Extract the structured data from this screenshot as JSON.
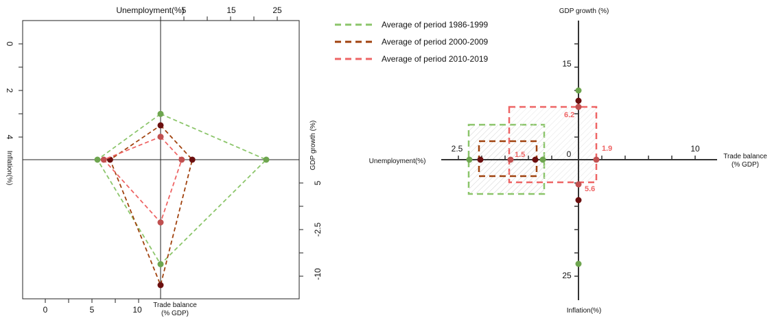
{
  "chart_data": [
    {
      "type": "radar",
      "axes": {
        "top": {
          "label": "Unemployment(%)",
          "ticks": [
            "5",
            "15",
            "25"
          ]
        },
        "left": {
          "label": "Inflation(%)",
          "ticks": [
            "0",
            "2",
            "4"
          ]
        },
        "right": {
          "label": "GDP growth (%)",
          "ticks": [
            "5",
            "-2.5",
            "-10"
          ]
        },
        "bottom": {
          "label": "Trade balance (% GDP)",
          "ticks": [
            "0",
            "5",
            "10"
          ]
        }
      },
      "series": [
        {
          "name": "Average of period 1986-1999",
          "color": "#8bc56a",
          "points": {
            "top": 4,
            "left": 10,
            "right": 20,
            "bottom": 2.5
          }
        },
        {
          "name": "Average of period 2000-2009",
          "color": "#a0420e",
          "points": {
            "top": 3,
            "left": 8,
            "right": 6,
            "bottom": 3
          }
        },
        {
          "name": "Average of period 2010-2019",
          "color": "#ee6464",
          "points": {
            "top": 2,
            "left": 9,
            "right": 4,
            "bottom": 1.5
          }
        }
      ]
    },
    {
      "type": "quadrant",
      "axes": {
        "top": {
          "label": "GDP growth (%)",
          "ticks": [
            "15"
          ]
        },
        "bottom": {
          "label": "Inflation(%)",
          "ticks": [
            "25"
          ]
        },
        "left": {
          "label": "Unemployment(%)",
          "ticks": [
            "2.5"
          ]
        },
        "right": {
          "label": "Trade balance",
          "label2": "(% GDP)",
          "ticks": [
            "10"
          ]
        },
        "origin": "0"
      },
      "annotations": [
        "6.2",
        "1.9",
        "1.5",
        "5.6"
      ],
      "legend": [
        {
          "name": "Average of period 1986-1999",
          "color": "#8bc56a"
        },
        {
          "name": "Average of period 2000-2009",
          "color": "#a0420e"
        },
        {
          "name": "Average of period 2010-2019",
          "color": "#ee6464"
        }
      ]
    }
  ]
}
